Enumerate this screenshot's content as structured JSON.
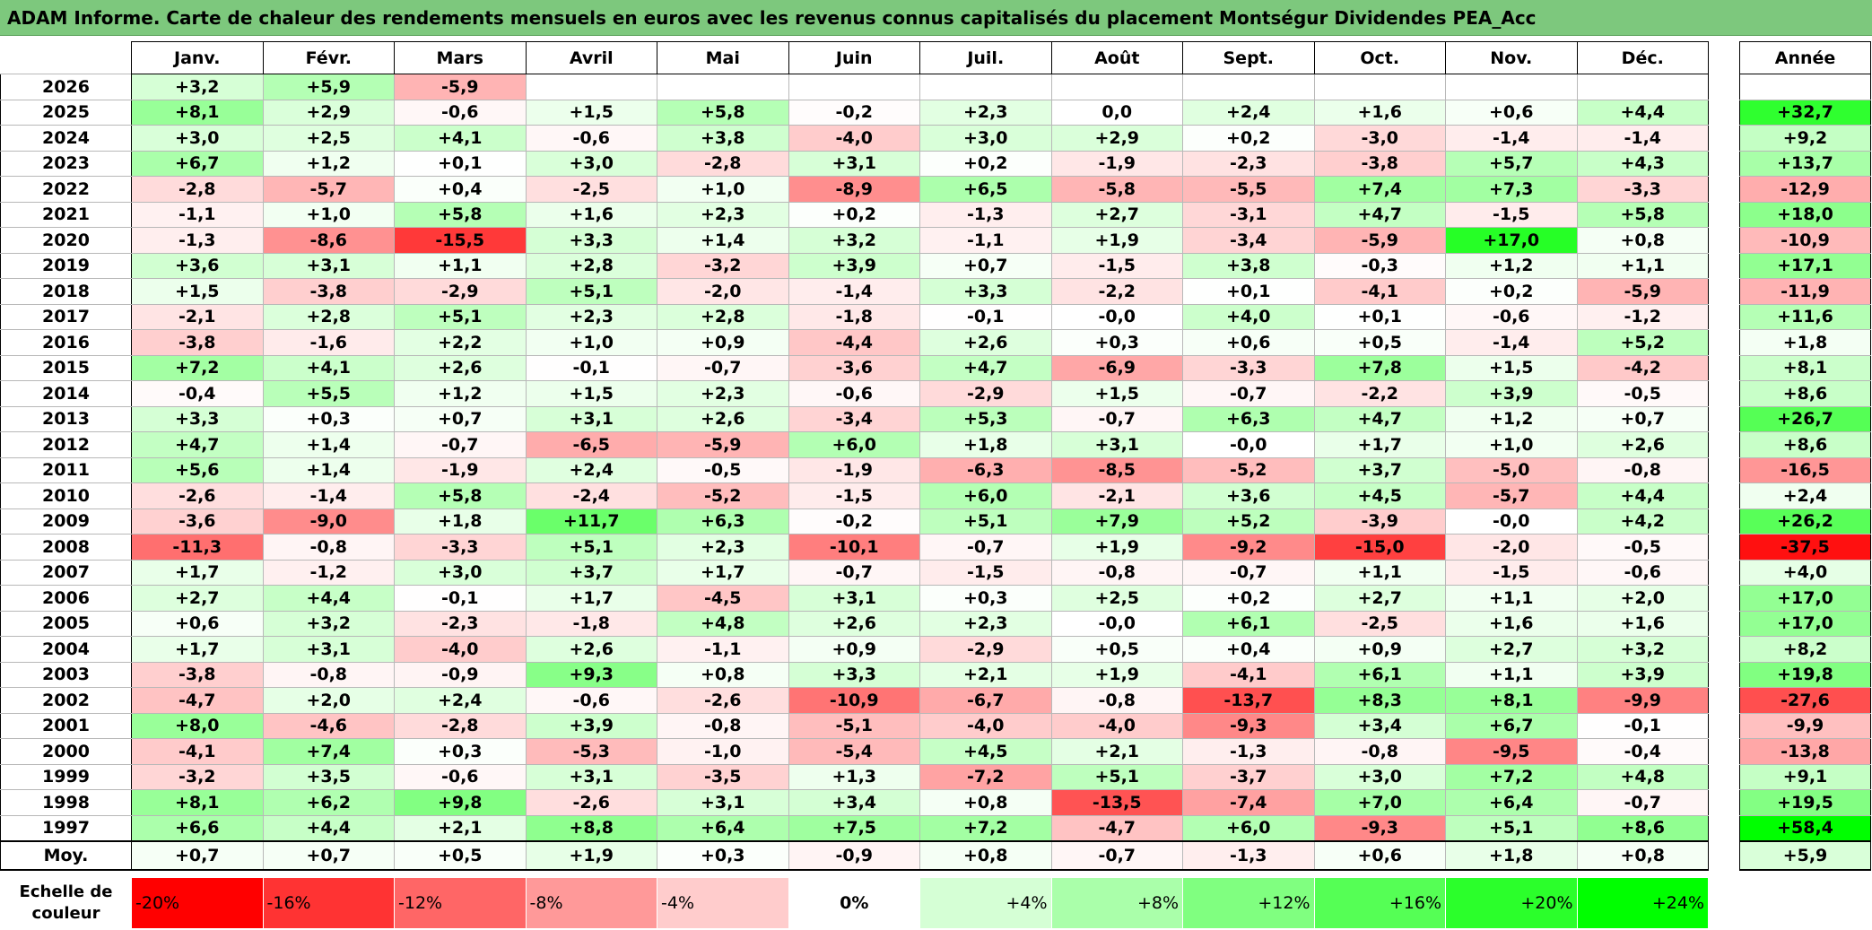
{
  "title": "ADAM Informe. Carte de chaleur des rendements mensuels en euros avec les revenus connus capitalisés du placement Montségur Dividendes PEA_Acc",
  "chart_data": {
    "type": "heatmap",
    "title": "ADAM Informe. Carte de chaleur des rendements mensuels en euros avec les revenus connus capitalisés du placement Montségur Dividendes PEA_Acc",
    "columns": [
      "Janv.",
      "Févr.",
      "Mars",
      "Avril",
      "Mai",
      "Juin",
      "Juil.",
      "Août",
      "Sept.",
      "Oct.",
      "Nov.",
      "Déc."
    ],
    "year_header": "Année",
    "rows": [
      {
        "year": "2026",
        "months": [
          "+3,2",
          "+5,9",
          "-5,9",
          "",
          "",
          "",
          "",
          "",
          "",
          "",
          "",
          ""
        ],
        "annual": ""
      },
      {
        "year": "2025",
        "months": [
          "+8,1",
          "+2,9",
          "-0,6",
          "+1,5",
          "+5,8",
          "-0,2",
          "+2,3",
          "0,0",
          "+2,4",
          "+1,6",
          "+0,6",
          "+4,4"
        ],
        "annual": "+32,7"
      },
      {
        "year": "2024",
        "months": [
          "+3,0",
          "+2,5",
          "+4,1",
          "-0,6",
          "+3,8",
          "-4,0",
          "+3,0",
          "+2,9",
          "+0,2",
          "-3,0",
          "-1,4",
          "-1,4"
        ],
        "annual": "+9,2"
      },
      {
        "year": "2023",
        "months": [
          "+6,7",
          "+1,2",
          "+0,1",
          "+3,0",
          "-2,8",
          "+3,1",
          "+0,2",
          "-1,9",
          "-2,3",
          "-3,8",
          "+5,7",
          "+4,3"
        ],
        "annual": "+13,7"
      },
      {
        "year": "2022",
        "months": [
          "-2,8",
          "-5,7",
          "+0,4",
          "-2,5",
          "+1,0",
          "-8,9",
          "+6,5",
          "-5,8",
          "-5,5",
          "+7,4",
          "+7,3",
          "-3,3"
        ],
        "annual": "-12,9"
      },
      {
        "year": "2021",
        "months": [
          "-1,1",
          "+1,0",
          "+5,8",
          "+1,6",
          "+2,3",
          "+0,2",
          "-1,3",
          "+2,7",
          "-3,1",
          "+4,7",
          "-1,5",
          "+5,8"
        ],
        "annual": "+18,0"
      },
      {
        "year": "2020",
        "months": [
          "-1,3",
          "-8,6",
          "-15,5",
          "+3,3",
          "+1,4",
          "+3,2",
          "-1,1",
          "+1,9",
          "-3,4",
          "-5,9",
          "+17,0",
          "+0,8"
        ],
        "annual": "-10,9"
      },
      {
        "year": "2019",
        "months": [
          "+3,6",
          "+3,1",
          "+1,1",
          "+2,8",
          "-3,2",
          "+3,9",
          "+0,7",
          "-1,5",
          "+3,8",
          "-0,3",
          "+1,2",
          "+1,1"
        ],
        "annual": "+17,1"
      },
      {
        "year": "2018",
        "months": [
          "+1,5",
          "-3,8",
          "-2,9",
          "+5,1",
          "-2,0",
          "-1,4",
          "+3,3",
          "-2,2",
          "+0,1",
          "-4,1",
          "+0,2",
          "-5,9"
        ],
        "annual": "-11,9"
      },
      {
        "year": "2017",
        "months": [
          "-2,1",
          "+2,8",
          "+5,1",
          "+2,3",
          "+2,8",
          "-1,8",
          "-0,1",
          "-0,0",
          "+4,0",
          "+0,1",
          "-0,6",
          "-1,2"
        ],
        "annual": "+11,6"
      },
      {
        "year": "2016",
        "months": [
          "-3,8",
          "-1,6",
          "+2,2",
          "+1,0",
          "+0,9",
          "-4,4",
          "+2,6",
          "+0,3",
          "+0,6",
          "+0,5",
          "-1,4",
          "+5,2"
        ],
        "annual": "+1,8"
      },
      {
        "year": "2015",
        "months": [
          "+7,2",
          "+4,1",
          "+2,6",
          "-0,1",
          "-0,7",
          "-3,6",
          "+4,7",
          "-6,9",
          "-3,3",
          "+7,8",
          "+1,5",
          "-4,2"
        ],
        "annual": "+8,1"
      },
      {
        "year": "2014",
        "months": [
          "-0,4",
          "+5,5",
          "+1,2",
          "+1,5",
          "+2,3",
          "-0,6",
          "-2,9",
          "+1,5",
          "-0,7",
          "-2,2",
          "+3,9",
          "-0,5"
        ],
        "annual": "+8,6"
      },
      {
        "year": "2013",
        "months": [
          "+3,3",
          "+0,3",
          "+0,7",
          "+3,1",
          "+2,6",
          "-3,4",
          "+5,3",
          "-0,7",
          "+6,3",
          "+4,7",
          "+1,2",
          "+0,7"
        ],
        "annual": "+26,7"
      },
      {
        "year": "2012",
        "months": [
          "+4,7",
          "+1,4",
          "-0,7",
          "-6,5",
          "-5,9",
          "+6,0",
          "+1,8",
          "+3,1",
          "-0,0",
          "+1,7",
          "+1,0",
          "+2,6"
        ],
        "annual": "+8,6"
      },
      {
        "year": "2011",
        "months": [
          "+5,6",
          "+1,4",
          "-1,9",
          "+2,4",
          "-0,5",
          "-1,9",
          "-6,3",
          "-8,5",
          "-5,2",
          "+3,7",
          "-5,0",
          "-0,8"
        ],
        "annual": "-16,5"
      },
      {
        "year": "2010",
        "months": [
          "-2,6",
          "-1,4",
          "+5,8",
          "-2,4",
          "-5,2",
          "-1,5",
          "+6,0",
          "-2,1",
          "+3,6",
          "+4,5",
          "-5,7",
          "+4,4"
        ],
        "annual": "+2,4"
      },
      {
        "year": "2009",
        "months": [
          "-3,6",
          "-9,0",
          "+1,8",
          "+11,7",
          "+6,3",
          "-0,2",
          "+5,1",
          "+7,9",
          "+5,2",
          "-3,9",
          "-0,0",
          "+4,2"
        ],
        "annual": "+26,2"
      },
      {
        "year": "2008",
        "months": [
          "-11,3",
          "-0,8",
          "-3,3",
          "+5,1",
          "+2,3",
          "-10,1",
          "-0,7",
          "+1,9",
          "-9,2",
          "-15,0",
          "-2,0",
          "-0,5"
        ],
        "annual": "-37,5"
      },
      {
        "year": "2007",
        "months": [
          "+1,7",
          "-1,2",
          "+3,0",
          "+3,7",
          "+1,7",
          "-0,7",
          "-1,5",
          "-0,8",
          "-0,7",
          "+1,1",
          "-1,5",
          "-0,6"
        ],
        "annual": "+4,0"
      },
      {
        "year": "2006",
        "months": [
          "+2,7",
          "+4,4",
          "-0,1",
          "+1,7",
          "-4,5",
          "+3,1",
          "+0,3",
          "+2,5",
          "+0,2",
          "+2,7",
          "+1,1",
          "+2,0"
        ],
        "annual": "+17,0"
      },
      {
        "year": "2005",
        "months": [
          "+0,6",
          "+3,2",
          "-2,3",
          "-1,8",
          "+4,8",
          "+2,6",
          "+2,3",
          "-0,0",
          "+6,1",
          "-2,5",
          "+1,6",
          "+1,6"
        ],
        "annual": "+17,0"
      },
      {
        "year": "2004",
        "months": [
          "+1,7",
          "+3,1",
          "-4,0",
          "+2,6",
          "-1,1",
          "+0,9",
          "-2,9",
          "+0,5",
          "+0,4",
          "+0,9",
          "+2,7",
          "+3,2"
        ],
        "annual": "+8,2"
      },
      {
        "year": "2003",
        "months": [
          "-3,8",
          "-0,8",
          "-0,9",
          "+9,3",
          "+0,8",
          "+3,3",
          "+2,1",
          "+1,9",
          "-4,1",
          "+6,1",
          "+1,1",
          "+3,9"
        ],
        "annual": "+19,8"
      },
      {
        "year": "2002",
        "months": [
          "-4,7",
          "+2,0",
          "+2,4",
          "-0,6",
          "-2,6",
          "-10,9",
          "-6,7",
          "-0,8",
          "-13,7",
          "+8,3",
          "+8,1",
          "-9,9"
        ],
        "annual": "-27,6"
      },
      {
        "year": "2001",
        "months": [
          "+8,0",
          "-4,6",
          "-2,8",
          "+3,9",
          "-0,8",
          "-5,1",
          "-4,0",
          "-4,0",
          "-9,3",
          "+3,4",
          "+6,7",
          "-0,1"
        ],
        "annual": "-9,9"
      },
      {
        "year": "2000",
        "months": [
          "-4,1",
          "+7,4",
          "+0,3",
          "-5,3",
          "-1,0",
          "-5,4",
          "+4,5",
          "+2,1",
          "-1,3",
          "-0,8",
          "-9,5",
          "-0,4"
        ],
        "annual": "-13,8"
      },
      {
        "year": "1999",
        "months": [
          "-3,2",
          "+3,5",
          "-0,6",
          "+3,1",
          "-3,5",
          "+1,3",
          "-7,2",
          "+5,1",
          "-3,7",
          "+3,0",
          "+7,2",
          "+4,8"
        ],
        "annual": "+9,1"
      },
      {
        "year": "1998",
        "months": [
          "+8,1",
          "+6,2",
          "+9,8",
          "-2,6",
          "+3,1",
          "+3,4",
          "+0,8",
          "-13,5",
          "-7,4",
          "+7,0",
          "+6,4",
          "-0,7"
        ],
        "annual": "+19,5"
      },
      {
        "year": "1997",
        "months": [
          "+6,6",
          "+4,4",
          "+2,1",
          "+8,8",
          "+6,4",
          "+7,5",
          "+7,2",
          "-4,7",
          "+6,0",
          "-9,3",
          "+5,1",
          "+8,6"
        ],
        "annual": "+58,4"
      }
    ],
    "average": {
      "label": "Moy.",
      "months": [
        "+0,7",
        "+0,7",
        "+0,5",
        "+1,9",
        "+0,3",
        "-0,9",
        "+0,8",
        "-0,7",
        "-1,3",
        "+0,6",
        "+1,8",
        "+0,8"
      ],
      "annual": "+5,9"
    },
    "scale": {
      "label": "Echelle de couleur",
      "stops": [
        "-20%",
        "-16%",
        "-12%",
        "-8%",
        "-4%",
        "0%",
        "+4%",
        "+8%",
        "+12%",
        "+16%",
        "+20%",
        "+24%"
      ],
      "values": [
        -20,
        -16,
        -12,
        -8,
        -4,
        0,
        4,
        8,
        12,
        16,
        20,
        24
      ]
    },
    "colors": {
      "negative_max": "#ff0000",
      "neutral": "#ffffff",
      "positive_max": "#00ff00",
      "title_bar": "#7dc87d"
    }
  }
}
